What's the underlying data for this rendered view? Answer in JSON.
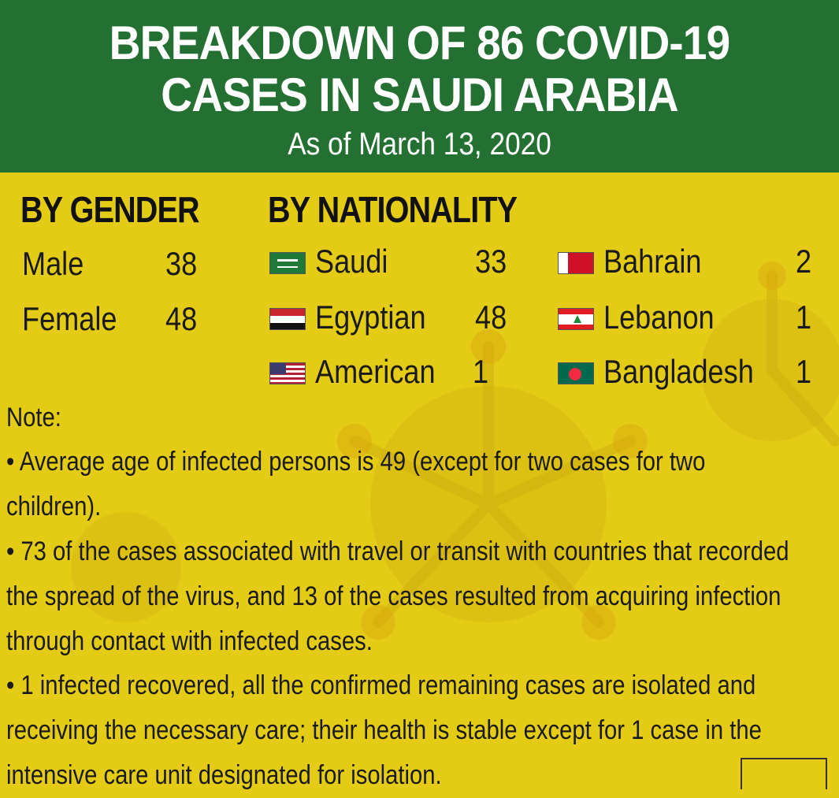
{
  "header": {
    "title_line1": "BREAKDOWN OF 86 COVID-19",
    "title_line2": "CASES IN SAUDI ARABIA",
    "subtitle": "As of March 13, 2020"
  },
  "gender": {
    "heading": "BY GENDER",
    "rows": [
      {
        "label": "Male",
        "value": "38"
      },
      {
        "label": "Female",
        "value": "48"
      }
    ]
  },
  "nationality": {
    "heading": "BY NATIONALITY",
    "rows": [
      {
        "label": "Saudi",
        "value": "33",
        "flag": "saudi-flag-icon"
      },
      {
        "label": "Egyptian",
        "value": "48",
        "flag": "egypt-flag-icon"
      },
      {
        "label": "American",
        "value": "1",
        "flag": "usa-flag-icon"
      },
      {
        "label": "Bahrain",
        "value": "2",
        "flag": "bahrain-flag-icon"
      },
      {
        "label": "Lebanon",
        "value": "1",
        "flag": "lebanon-flag-icon"
      },
      {
        "label": "Bangladesh",
        "value": "1",
        "flag": "bangladesh-flag-icon"
      }
    ]
  },
  "notes": {
    "label": "Note:",
    "items": [
      "• Average age of infected persons is 49 (except for two cases for two children).",
      "• 73 of the cases associated with travel or transit with countries that recorded the spread of the virus, and 13 of the cases resulted from acquiring infection through contact with infected cases.",
      "• 1 infected recovered, all the confirmed remaining cases are isolated and receiving the necessary care; their health is stable except for 1 case in the intensive care unit designated for isolation."
    ]
  },
  "colors": {
    "header_green": "#247032",
    "background_yellow": "#e4cc16",
    "virus_tint": "#d4b512"
  }
}
